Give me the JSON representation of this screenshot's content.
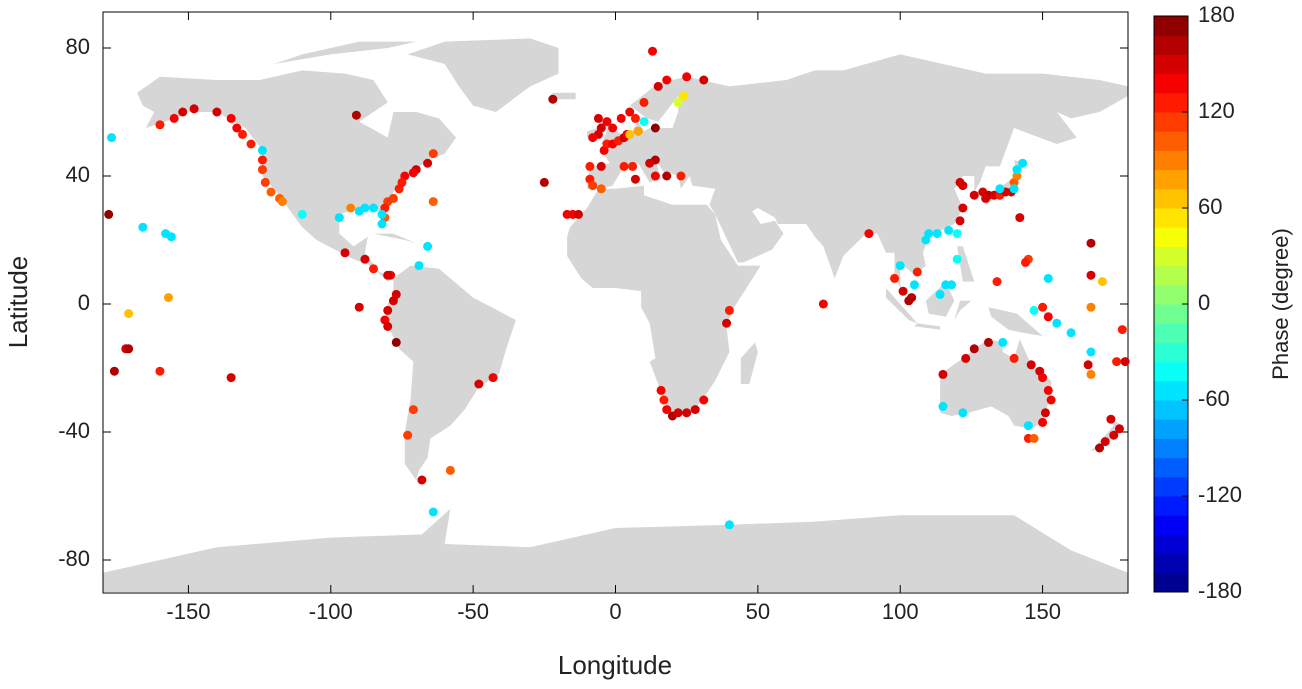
{
  "chart_data": {
    "type": "scatter",
    "x_label": "Longitude",
    "y_label": "Latitude",
    "xlim": [
      -180,
      180
    ],
    "ylim": [
      -90,
      90
    ],
    "xticks": [
      -150,
      -100,
      -50,
      0,
      50,
      100,
      150
    ],
    "yticks": [
      -80,
      -40,
      0,
      40,
      80
    ],
    "x": [
      -178,
      -177,
      -160,
      -155,
      -152,
      -148,
      -140,
      -135,
      -133,
      -131,
      -128,
      -124,
      -124,
      -124,
      -123,
      -121,
      -118,
      -117,
      -91,
      -110,
      -166,
      -158,
      -156,
      -157,
      -171,
      -172,
      -171,
      -176,
      -160,
      -135,
      -64,
      -66,
      -70,
      -71,
      -74,
      -75,
      -76,
      -78,
      -80,
      -81,
      -81,
      -82,
      -82,
      -85,
      -88,
      -90,
      -93,
      -97,
      -64,
      -66,
      -69,
      -79,
      -80,
      -85,
      -88,
      -95,
      -90,
      -80,
      -81,
      -80,
      -77,
      -77,
      -78,
      -71,
      -73,
      -68,
      -58,
      -48,
      -43,
      -64,
      -25,
      -22,
      -17,
      -15,
      -13,
      -9,
      -9,
      -8,
      -5,
      -4,
      -3,
      -1,
      1,
      3,
      4,
      -5,
      -6,
      -3,
      -1,
      2,
      5,
      7,
      8,
      5,
      10,
      10,
      15,
      13,
      18,
      25,
      31,
      22,
      24,
      14,
      14,
      12,
      7,
      14,
      18,
      23,
      -6,
      -8,
      3,
      6,
      -5,
      16,
      17,
      18,
      20,
      22,
      25,
      28,
      31,
      39,
      40,
      73,
      89,
      98,
      100,
      101,
      103,
      104,
      105,
      106,
      109,
      110,
      113,
      117,
      120,
      120,
      118,
      116,
      114,
      121,
      122,
      122,
      121,
      126,
      129,
      131,
      133,
      135,
      137,
      139,
      140,
      141,
      141,
      143,
      140,
      135,
      130,
      145,
      144,
      134,
      142,
      150,
      152,
      155,
      160,
      152,
      167,
      167,
      171,
      178,
      179,
      176,
      167,
      167,
      166,
      167,
      147,
      115,
      115,
      122,
      123,
      126,
      131,
      136,
      140,
      146,
      149,
      150,
      152,
      153,
      151,
      150,
      145,
      145,
      147,
      174,
      175,
      177,
      172,
      170,
      40
    ],
    "y": [
      28,
      52,
      56,
      58,
      60,
      61,
      60,
      58,
      55,
      53,
      50,
      48,
      45,
      42,
      38,
      35,
      33,
      32,
      59,
      28,
      24,
      22,
      21,
      2,
      -3,
      -14,
      -14,
      -21,
      -21,
      -23,
      47,
      44,
      42,
      41,
      40,
      38,
      36,
      33,
      32,
      30,
      27,
      25,
      28,
      30,
      30,
      29,
      30,
      27,
      32,
      18,
      12,
      9,
      9,
      11,
      14,
      16,
      -1,
      -2,
      -5,
      -7,
      -12,
      3,
      1,
      -33,
      -41,
      -55,
      -52,
      -25,
      -23,
      -65,
      38,
      64,
      28,
      28,
      28,
      39,
      43,
      37,
      36,
      48,
      50,
      50,
      51,
      52,
      53,
      55,
      58,
      57,
      55,
      58,
      60,
      58,
      54,
      53,
      57,
      63,
      68,
      79,
      70,
      71,
      70,
      63,
      65,
      55,
      45,
      44,
      39,
      40,
      40,
      40,
      53,
      52,
      43,
      43,
      43,
      -27,
      -30,
      -33,
      -35,
      -34,
      -34,
      -33,
      -30,
      -6,
      -2,
      0,
      22,
      8,
      12,
      4,
      1,
      2,
      6,
      10,
      20,
      22,
      22,
      23,
      22,
      14,
      6,
      6,
      3,
      26,
      30,
      37,
      38,
      34,
      35,
      34,
      34,
      34,
      35,
      35,
      38,
      40,
      42,
      44,
      36,
      36,
      33,
      14,
      13,
      7,
      27,
      -1,
      -4,
      -6,
      -9,
      8,
      9,
      -1,
      7,
      -8,
      -18,
      -18,
      -15,
      -22,
      -19,
      19,
      -2,
      -22,
      -32,
      -34,
      -17,
      -14,
      -12,
      -12,
      -17,
      -19,
      -21,
      -23,
      -27,
      -30,
      -34,
      -37,
      -38,
      -42,
      -42,
      -36,
      -41,
      -39,
      -43,
      -45,
      -69
    ],
    "c": [
      170,
      -50,
      130,
      140,
      150,
      150,
      145,
      140,
      135,
      130,
      125,
      -50,
      120,
      115,
      110,
      105,
      100,
      95,
      160,
      -45,
      -50,
      -50,
      -50,
      80,
      70,
      150,
      165,
      165,
      130,
      150,
      110,
      155,
      150,
      140,
      140,
      130,
      120,
      115,
      110,
      120,
      100,
      -50,
      -50,
      -50,
      -55,
      -55,
      90,
      -50,
      100,
      -50,
      -50,
      140,
      150,
      130,
      155,
      150,
      150,
      150,
      140,
      145,
      170,
      155,
      150,
      110,
      110,
      150,
      100,
      150,
      140,
      -55,
      160,
      160,
      140,
      140,
      150,
      120,
      130,
      110,
      100,
      140,
      130,
      140,
      125,
      150,
      140,
      150,
      145,
      140,
      135,
      140,
      140,
      120,
      80,
      70,
      -45,
      130,
      150,
      140,
      140,
      140,
      150,
      30,
      55,
      170,
      160,
      150,
      155,
      140,
      160,
      120,
      150,
      140,
      130,
      125,
      150,
      140,
      130,
      140,
      160,
      155,
      150,
      145,
      140,
      155,
      130,
      140,
      140,
      130,
      -50,
      155,
      160,
      165,
      -50,
      130,
      -50,
      -50,
      -50,
      -50,
      -45,
      -45,
      -50,
      -50,
      -50,
      150,
      150,
      155,
      155,
      155,
      150,
      160,
      150,
      130,
      145,
      145,
      100,
      90,
      -50,
      -50,
      -55,
      -55,
      150,
      110,
      120,
      130,
      150,
      130,
      140,
      -50,
      -60,
      -50,
      150,
      90,
      70,
      120,
      150,
      130,
      -55,
      90,
      150,
      160,
      -45,
      150,
      -50,
      -50,
      150,
      160,
      165,
      -50,
      130,
      145,
      150,
      140,
      140,
      140,
      150,
      140,
      -50,
      120,
      100,
      150,
      150,
      150,
      155,
      160,
      -50
    ],
    "colorbar": {
      "label": "Phase (degree)",
      "lim": [
        -180,
        180
      ],
      "ticks": [
        -180,
        -120,
        -60,
        0,
        60,
        120,
        180
      ],
      "colormap": "jet",
      "steps": 30
    }
  }
}
